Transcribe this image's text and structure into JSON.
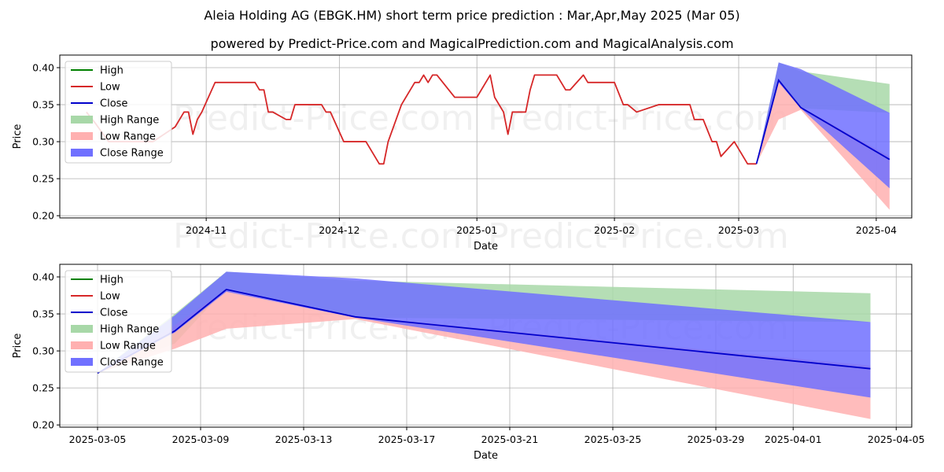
{
  "title": "Aleia Holding AG (EBGK.HM) short term price prediction : Mar,Apr,May 2025 (Mar 05)",
  "subtitle": "powered by Predict-Price.com and MagicalPrediction.com and MagicalAnalysis.com",
  "watermark": "Predict-Price.com",
  "colors": {
    "high": "#008000",
    "low": "#d62728",
    "close": "#0000cc",
    "high_range": "#a8d8a8",
    "low_range": "#ffb0b0",
    "close_range": "#7070ff"
  },
  "chart_data": [
    {
      "type": "line",
      "xlabel": "Date",
      "ylabel": "Price",
      "ylim": [
        0.197,
        0.417
      ],
      "yticks": [
        "0.20",
        "0.25",
        "0.30",
        "0.35",
        "0.40"
      ],
      "xticks": [
        "2024-11",
        "2024-12",
        "2025-01",
        "2025-02",
        "2025-03",
        "2025-04"
      ],
      "legend_position": "top-left",
      "legend": [
        "High",
        "Low",
        "Close",
        "High Range",
        "Low Range",
        "Close Range"
      ],
      "grid": true,
      "history": {
        "series_name": "Low",
        "x": [
          "2024-10-05",
          "2024-10-07",
          "2024-10-10",
          "2024-10-20",
          "2024-10-25",
          "2024-10-27",
          "2024-10-28",
          "2024-10-29",
          "2024-10-30",
          "2024-10-31",
          "2024-11-03",
          "2024-11-05",
          "2024-11-06",
          "2024-11-12",
          "2024-11-13",
          "2024-11-14",
          "2024-11-15",
          "2024-11-16",
          "2024-11-19",
          "2024-11-20",
          "2024-11-21",
          "2024-11-27",
          "2024-11-28",
          "2024-11-29",
          "2024-12-02",
          "2024-12-07",
          "2024-12-10",
          "2024-12-11",
          "2024-12-12",
          "2024-12-15",
          "2024-12-17",
          "2024-12-18",
          "2024-12-19",
          "2024-12-20",
          "2024-12-21",
          "2024-12-22",
          "2024-12-23",
          "2024-12-27",
          "2024-12-30",
          "2025-01-01",
          "2025-01-03",
          "2025-01-04",
          "2025-01-05",
          "2025-01-07",
          "2025-01-08",
          "2025-01-09",
          "2025-01-10",
          "2025-01-12",
          "2025-01-13",
          "2025-01-14",
          "2025-01-18",
          "2025-01-19",
          "2025-01-21",
          "2025-01-22",
          "2025-01-25",
          "2025-01-26",
          "2025-01-29",
          "2025-01-31",
          "2025-02-01",
          "2025-02-03",
          "2025-02-04",
          "2025-02-06",
          "2025-02-11",
          "2025-02-18",
          "2025-02-19",
          "2025-02-21",
          "2025-02-23",
          "2025-02-24",
          "2025-02-25",
          "2025-02-28",
          "2025-03-03",
          "2025-03-05"
        ],
        "y": [
          0.34,
          0.325,
          0.3,
          0.3,
          0.32,
          0.34,
          0.34,
          0.31,
          0.33,
          0.34,
          0.38,
          0.38,
          0.38,
          0.38,
          0.37,
          0.37,
          0.34,
          0.34,
          0.33,
          0.33,
          0.35,
          0.35,
          0.34,
          0.34,
          0.3,
          0.3,
          0.27,
          0.27,
          0.3,
          0.35,
          0.37,
          0.38,
          0.38,
          0.39,
          0.38,
          0.39,
          0.39,
          0.36,
          0.36,
          0.36,
          0.38,
          0.39,
          0.36,
          0.34,
          0.31,
          0.34,
          0.34,
          0.34,
          0.37,
          0.39,
          0.39,
          0.39,
          0.37,
          0.37,
          0.39,
          0.38,
          0.38,
          0.38,
          0.38,
          0.35,
          0.35,
          0.34,
          0.35,
          0.35,
          0.33,
          0.33,
          0.3,
          0.3,
          0.28,
          0.3,
          0.27,
          0.27
        ]
      },
      "prediction": {
        "x": [
          "2025-03-05",
          "2025-03-10",
          "2025-03-15",
          "2025-04-04"
        ],
        "high_range": {
          "upper": [
            0.27,
            0.407,
            0.395,
            0.378
          ],
          "lower": [
            0.27,
            0.385,
            0.345,
            0.339
          ]
        },
        "low_range": {
          "upper": [
            0.27,
            0.383,
            0.347,
            0.28
          ],
          "lower": [
            0.27,
            0.33,
            0.343,
            0.208
          ]
        },
        "close_range": {
          "upper": [
            0.27,
            0.407,
            0.398,
            0.339
          ],
          "lower": [
            0.27,
            0.38,
            0.345,
            0.237
          ]
        },
        "close": [
          0.27,
          0.383,
          0.346,
          0.276
        ]
      }
    },
    {
      "type": "line",
      "xlabel": "Date",
      "ylabel": "Price",
      "ylim": [
        0.197,
        0.417
      ],
      "yticks": [
        "0.20",
        "0.25",
        "0.30",
        "0.35",
        "0.40"
      ],
      "xticks": [
        "2025-03-05",
        "2025-03-09",
        "2025-03-13",
        "2025-03-17",
        "2025-03-21",
        "2025-03-25",
        "2025-03-29",
        "2025-04-01",
        "2025-04-05"
      ],
      "legend_position": "top-left",
      "legend": [
        "High",
        "Low",
        "Close",
        "High Range",
        "Low Range",
        "Close Range"
      ],
      "grid": true,
      "prediction": {
        "x": [
          "2025-03-05",
          "2025-03-08",
          "2025-03-10",
          "2025-03-15",
          "2025-04-04"
        ],
        "high_range": {
          "upper": [
            0.27,
            0.35,
            0.407,
            0.395,
            0.378
          ],
          "lower": [
            0.27,
            0.31,
            0.385,
            0.345,
            0.339
          ]
        },
        "low_range": {
          "upper": [
            0.27,
            0.335,
            0.383,
            0.347,
            0.28
          ],
          "lower": [
            0.27,
            0.303,
            0.33,
            0.343,
            0.208
          ]
        },
        "close_range": {
          "upper": [
            0.27,
            0.348,
            0.407,
            0.398,
            0.339
          ],
          "lower": [
            0.27,
            0.325,
            0.38,
            0.345,
            0.237
          ]
        },
        "close": [
          0.27,
          0.327,
          0.383,
          0.346,
          0.276
        ]
      }
    }
  ]
}
